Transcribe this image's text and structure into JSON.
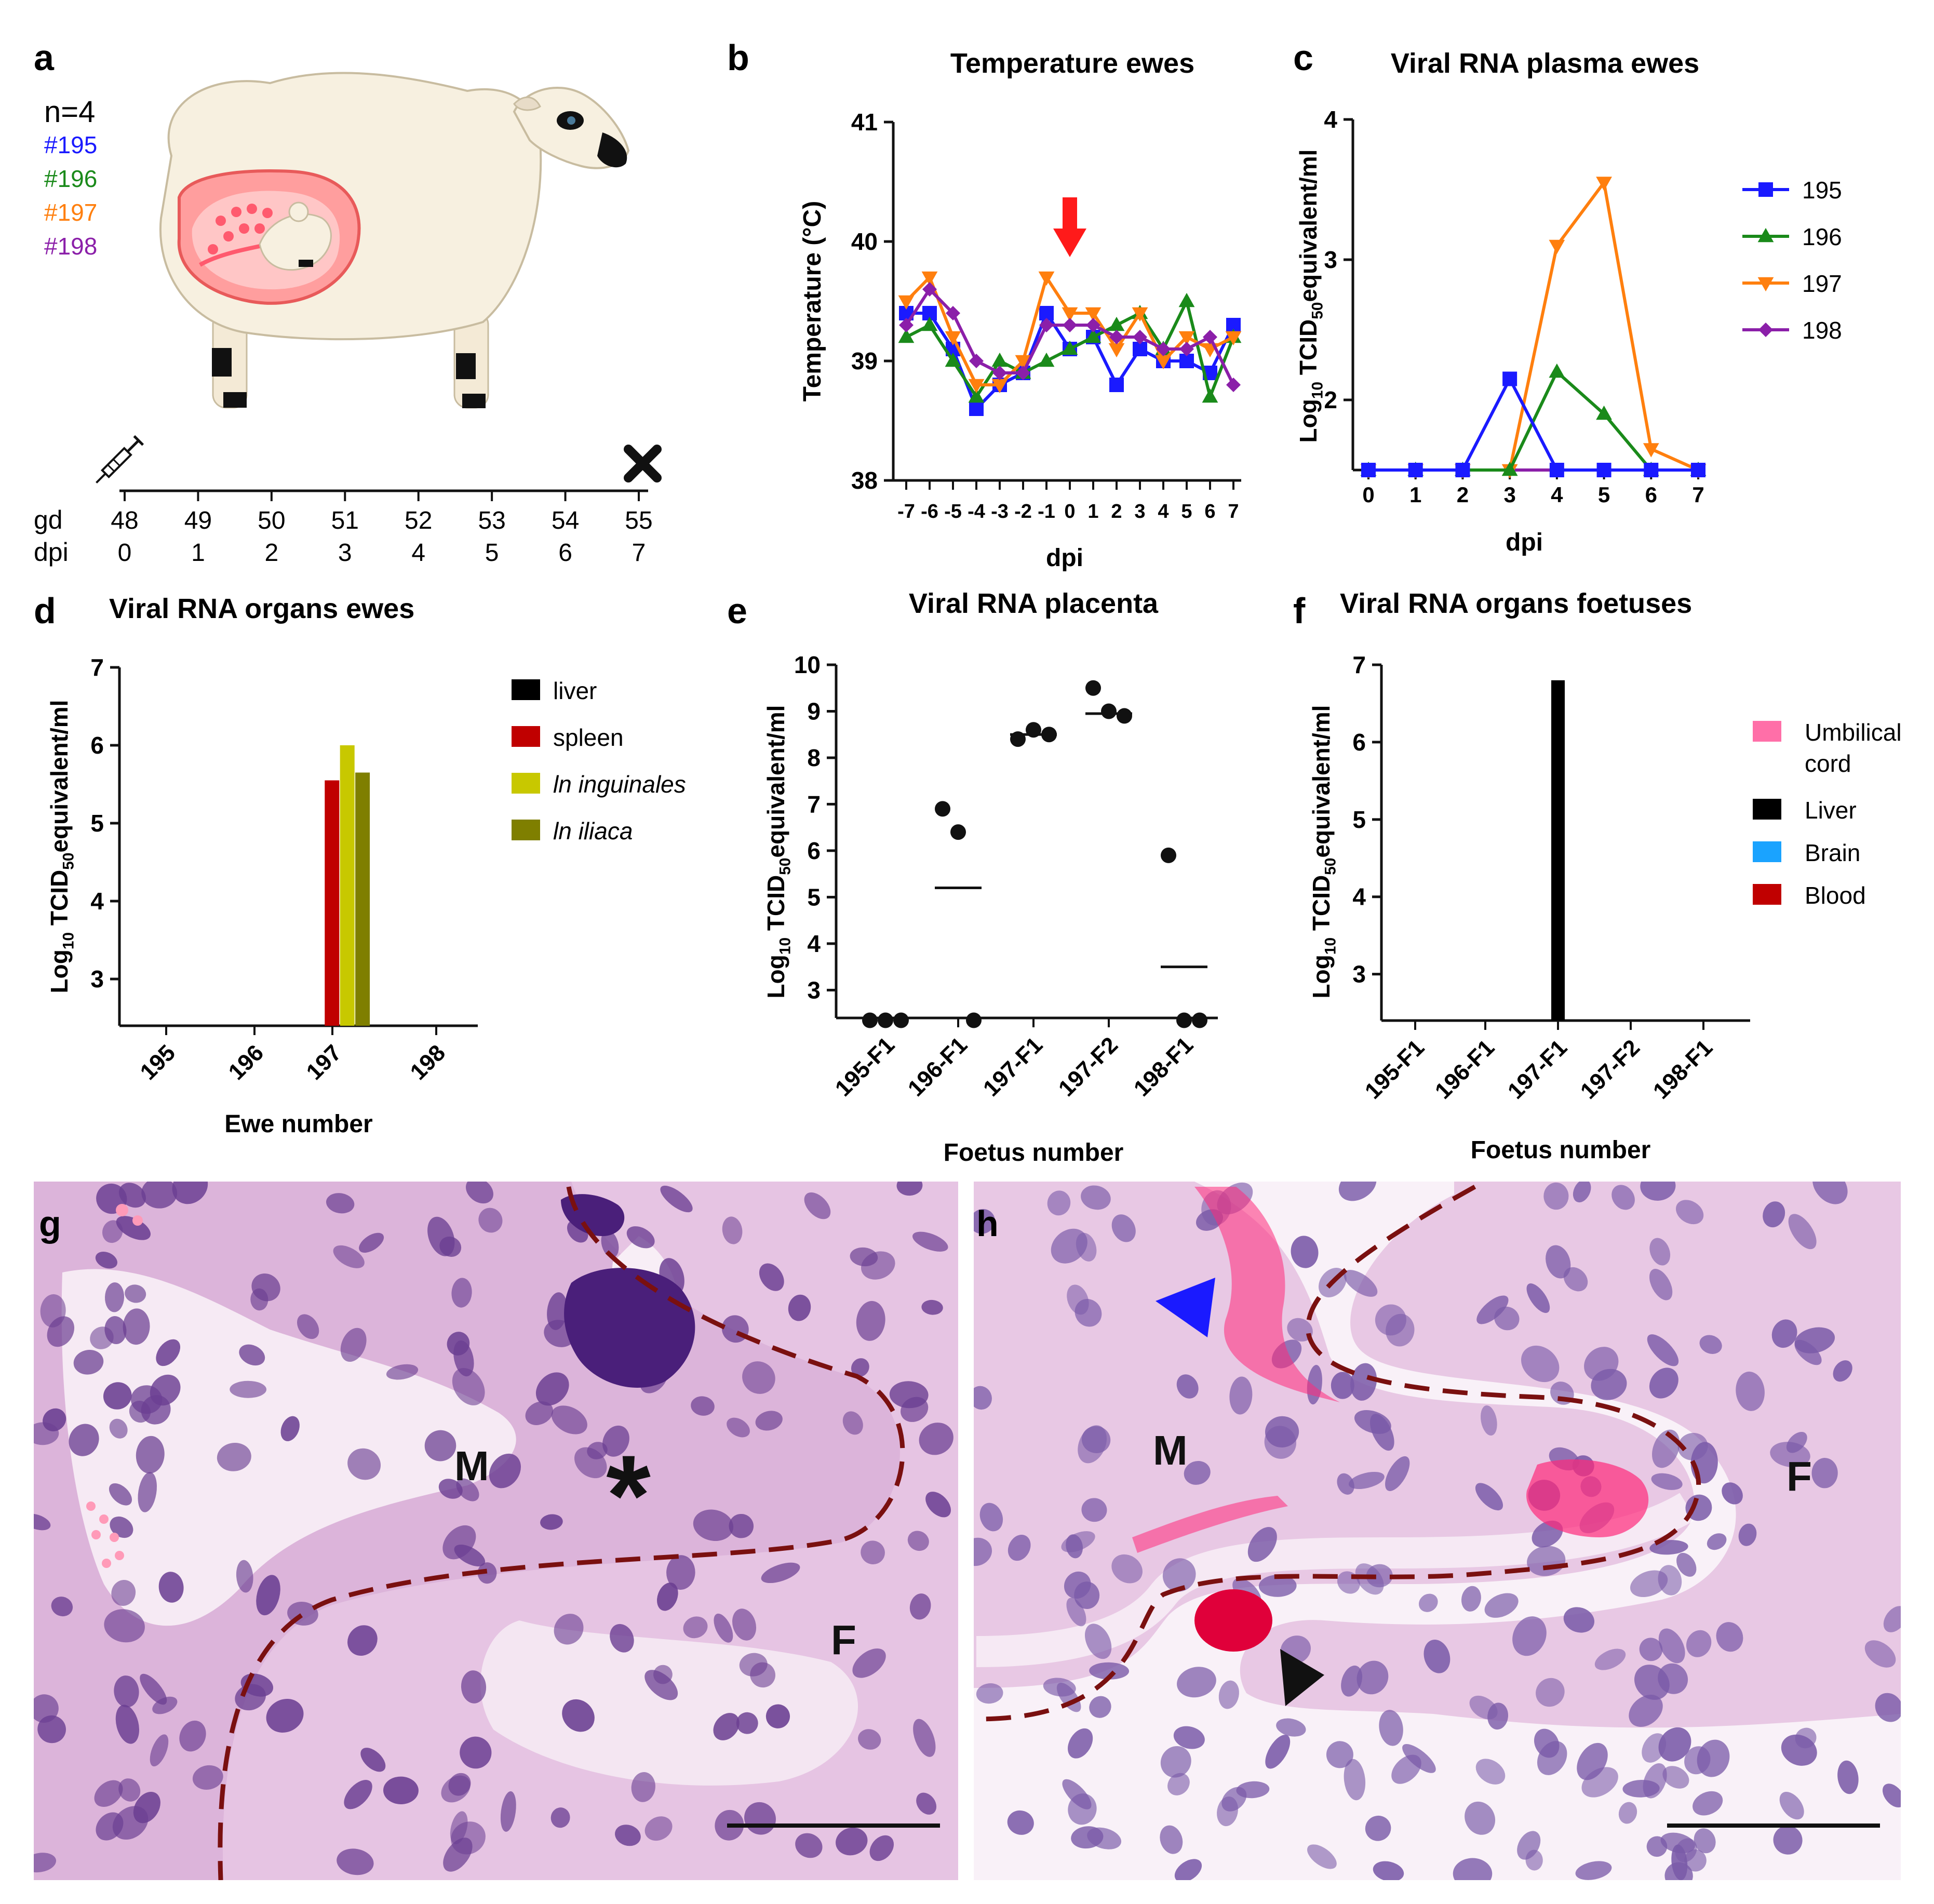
{
  "panel_letters": {
    "a": "a",
    "b": "b",
    "c": "c",
    "d": "d",
    "e": "e",
    "f": "f",
    "g": "g",
    "h": "h"
  },
  "colors": {
    "e195": "#1a1aff",
    "e196": "#1a8a1a",
    "e197": "#ff7f0e",
    "e198": "#8b1fa9",
    "tissue": "#d9a9d6",
    "dash": "#7a1010",
    "arrow_red": "#ff1a1a"
  },
  "panel_a": {
    "n_label": "n=4",
    "ewes": [
      "#195",
      "#196",
      "#197",
      "#198"
    ],
    "gd_label": "gd",
    "dpi_label": "dpi",
    "gd": [
      "48",
      "49",
      "50",
      "51",
      "52",
      "53",
      "54",
      "55"
    ],
    "dpi": [
      "0",
      "1",
      "2",
      "3",
      "4",
      "5",
      "6",
      "7"
    ],
    "icons": [
      "sheep-icon",
      "syringe-icon",
      "cross-icon"
    ]
  },
  "panel_g": {
    "labels": {
      "m": "M",
      "f": "F",
      "star": "*"
    }
  },
  "panel_h": {
    "labels": {
      "m": "M",
      "f": "F"
    }
  },
  "chart_data": [
    {
      "id": "b",
      "type": "line",
      "title": "Temperature ewes",
      "xlabel": "dpi",
      "ylabel": "Temperature (°C)",
      "categories": [
        "-7",
        "-6",
        "-5",
        "-4",
        "-3",
        "-2",
        "-1",
        "0",
        "1",
        "2",
        "3",
        "4",
        "5",
        "6",
        "7"
      ],
      "ylim": [
        38,
        41
      ],
      "yticks": [
        "38",
        "39",
        "40",
        "41"
      ],
      "series": [
        {
          "name": "195",
          "color": "#1a1aff",
          "marker": "square",
          "values": [
            39.4,
            39.4,
            39.1,
            38.6,
            38.8,
            38.9,
            39.4,
            39.1,
            39.2,
            38.8,
            39.1,
            39.0,
            39.0,
            38.9,
            39.3
          ]
        },
        {
          "name": "196",
          "color": "#1a8a1a",
          "marker": "triangle",
          "values": [
            39.2,
            39.3,
            39.0,
            38.7,
            39.0,
            38.9,
            39.0,
            39.1,
            39.2,
            39.3,
            39.4,
            39.1,
            39.5,
            38.7,
            39.2
          ]
        },
        {
          "name": "197",
          "color": "#ff7f0e",
          "marker": "tridown",
          "values": [
            39.5,
            39.7,
            39.2,
            38.8,
            38.8,
            39.0,
            39.7,
            39.4,
            39.4,
            39.1,
            39.4,
            39.0,
            39.2,
            39.1,
            39.2
          ]
        },
        {
          "name": "198",
          "color": "#8b1fa9",
          "marker": "diamond",
          "values": [
            39.3,
            39.6,
            39.4,
            39.0,
            38.9,
            38.9,
            39.3,
            39.3,
            39.3,
            39.2,
            39.2,
            39.1,
            39.1,
            39.2,
            38.8
          ]
        }
      ],
      "annotation": "red arrow at dpi 0"
    },
    {
      "id": "c",
      "type": "line",
      "title": "Viral RNA plasma ewes",
      "xlabel": "dpi",
      "ylabel_parts": [
        "Log",
        "10",
        " TCID",
        "50",
        "equivalent/ml"
      ],
      "categories": [
        "0",
        "1",
        "2",
        "3",
        "4",
        "5",
        "6",
        "7"
      ],
      "ylim": [
        1.5,
        4
      ],
      "yticks": [
        "2",
        "3",
        "4"
      ],
      "series": [
        {
          "name": "195",
          "color": "#1a1aff",
          "marker": "square",
          "values": [
            1.5,
            1.5,
            1.5,
            2.15,
            1.5,
            1.5,
            1.5,
            1.5
          ]
        },
        {
          "name": "196",
          "color": "#1a8a1a",
          "marker": "triangle",
          "values": [
            1.5,
            1.5,
            1.5,
            1.5,
            2.2,
            1.9,
            1.5,
            1.5
          ]
        },
        {
          "name": "197",
          "color": "#ff7f0e",
          "marker": "tridown",
          "values": [
            1.5,
            1.5,
            1.5,
            1.5,
            3.1,
            3.55,
            1.65,
            1.5
          ]
        },
        {
          "name": "198",
          "color": "#8b1fa9",
          "marker": "diamond",
          "values": [
            1.5,
            1.5,
            1.5,
            1.5,
            1.5,
            1.5,
            1.5,
            1.5
          ]
        }
      ],
      "legend": [
        "195",
        "196",
        "197",
        "198"
      ]
    },
    {
      "id": "d",
      "type": "bar",
      "title": "Viral RNA organs ewes",
      "xlabel": "Ewe number",
      "ylabel_parts": [
        "Log",
        "10",
        " TCID",
        "50",
        "equivalent/ml"
      ],
      "categories": [
        "195",
        "196",
        "197",
        "198"
      ],
      "ylim": [
        2.4,
        7
      ],
      "yticks": [
        "3",
        "4",
        "5",
        "6",
        "7"
      ],
      "series": [
        {
          "name": "liver",
          "color": "#000000",
          "italic": false,
          "values": [
            null,
            null,
            null,
            null
          ]
        },
        {
          "name": "spleen",
          "color": "#c00000",
          "italic": false,
          "values": [
            null,
            null,
            5.55,
            null
          ]
        },
        {
          "name": "ln inguinales",
          "color": "#c8c800",
          "italic": true,
          "values": [
            null,
            null,
            6.0,
            null
          ]
        },
        {
          "name": "ln iliaca",
          "color": "#7f7f00",
          "italic": true,
          "values": [
            null,
            null,
            5.65,
            null
          ]
        }
      ]
    },
    {
      "id": "e",
      "type": "scatter",
      "title": "Viral RNA placenta",
      "xlabel": "Foetus number",
      "ylabel_parts": [
        "Log",
        "10",
        " TCID",
        "50",
        "equivalent/ml"
      ],
      "categories": [
        "195-F1",
        "196-F1",
        "197-F1",
        "197-F2",
        "198-F1"
      ],
      "ylim": [
        2.4,
        10
      ],
      "yticks": [
        "3",
        "4",
        "5",
        "6",
        "7",
        "8",
        "9",
        "10"
      ],
      "points": [
        [
          2.35,
          2.35,
          2.35
        ],
        [
          6.9,
          6.4,
          2.35
        ],
        [
          8.4,
          8.6,
          8.5
        ],
        [
          9.5,
          9.0,
          8.9
        ],
        [
          5.9,
          2.35,
          2.35
        ]
      ],
      "means": [
        null,
        5.2,
        8.5,
        8.95,
        3.5
      ]
    },
    {
      "id": "f",
      "type": "bar",
      "title": "Viral RNA organs foetuses",
      "xlabel": "Foetus number",
      "ylabel_parts": [
        "Log",
        "10",
        " TCID",
        "50",
        "equivalent/ml"
      ],
      "categories": [
        "195-F1",
        "196-F1",
        "197-F1",
        "197-F2",
        "198-F1"
      ],
      "ylim": [
        2.4,
        7
      ],
      "yticks": [
        "3",
        "4",
        "5",
        "6",
        "7"
      ],
      "series": [
        {
          "name": "Umbilical cord",
          "color": "#ff6fa8",
          "values": [
            null,
            null,
            null,
            null,
            null
          ]
        },
        {
          "name": "Liver",
          "color": "#000000",
          "values": [
            null,
            null,
            6.8,
            null,
            null
          ]
        },
        {
          "name": "Brain",
          "color": "#1aa3ff",
          "values": [
            null,
            null,
            null,
            null,
            null
          ]
        },
        {
          "name": "Blood",
          "color": "#c00000",
          "values": [
            null,
            null,
            null,
            null,
            null
          ]
        }
      ],
      "legend_lines": [
        [
          "Umbilical",
          "cord"
        ],
        [
          "Liver"
        ],
        [
          "Brain"
        ],
        [
          "Blood"
        ]
      ]
    }
  ]
}
